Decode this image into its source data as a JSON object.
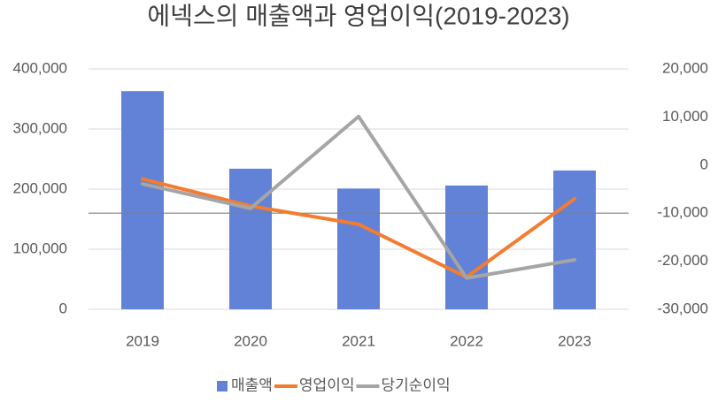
{
  "chart_data": {
    "type": "bar_line_dual",
    "title": "에넥스의 매출액과 영업이익(2019-2023)",
    "categories": [
      "2019",
      "2020",
      "2021",
      "2022",
      "2023"
    ],
    "series": [
      {
        "name": "매출액",
        "type": "bar",
        "color": "#6182d6",
        "values": [
          363000,
          234000,
          201000,
          206000,
          231000
        ]
      },
      {
        "name": "영업이익",
        "type": "line",
        "axis": "y2",
        "color": "#f47c30",
        "values": [
          -2900,
          -8500,
          -12300,
          -23300,
          -7000
        ]
      },
      {
        "name": "당기순이익",
        "type": "line",
        "axis": "y2",
        "color": "#a5a5a5",
        "values": [
          -3900,
          -9000,
          10100,
          -23500,
          -19700
        ]
      }
    ],
    "ylim": [
      0,
      400000
    ],
    "yticks": [
      0,
      {
        "value": 100000,
        "label": "100,000"
      },
      {
        "value": 200000,
        "label": "200,000"
      },
      {
        "value": 300000,
        "label": "300,000"
      },
      {
        "value": 400000,
        "label": "400,000"
      }
    ],
    "y2lim": [
      -30000,
      20000
    ],
    "y2ticks": [
      {
        "value": -30000,
        "label": "-30,000"
      },
      {
        "value": -20000,
        "label": "-20,000"
      },
      {
        "value": -10000,
        "label": "-10,000"
      },
      0,
      {
        "value": 10000,
        "label": "10,000"
      },
      {
        "value": 20000,
        "label": "20,000"
      }
    ],
    "grid": true,
    "legend": "bottom"
  }
}
